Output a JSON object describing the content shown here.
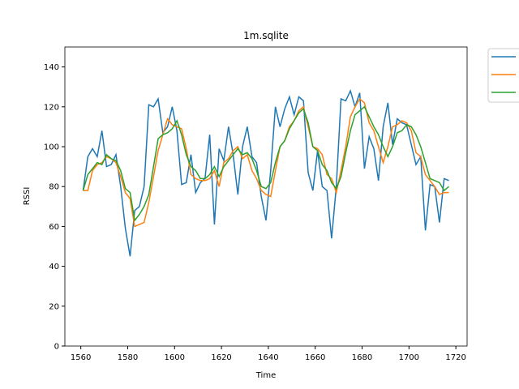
{
  "chart_data": {
    "type": "line",
    "title": "1m.sqlite",
    "x_label": "Time",
    "y_label": "RSSI",
    "x": [
      1561,
      1563,
      1565,
      1567,
      1569,
      1571,
      1573,
      1575,
      1577,
      1579,
      1581,
      1583,
      1585,
      1587,
      1589,
      1591,
      1593,
      1595,
      1597,
      1599,
      1601,
      1603,
      1605,
      1607,
      1609,
      1611,
      1613,
      1615,
      1617,
      1619,
      1621,
      1623,
      1625,
      1627,
      1629,
      1631,
      1633,
      1635,
      1637,
      1639,
      1641,
      1643,
      1645,
      1647,
      1649,
      1651,
      1653,
      1655,
      1657,
      1659,
      1661,
      1663,
      1665,
      1667,
      1669,
      1671,
      1673,
      1675,
      1677,
      1679,
      1681,
      1683,
      1685,
      1687,
      1689,
      1691,
      1693,
      1695,
      1697,
      1699,
      1701,
      1703,
      1705,
      1707,
      1709,
      1711,
      1713,
      1715,
      1717
    ],
    "series": [
      {
        "color": "#1f77b4",
        "values": [
          78,
          95,
          99,
          95,
          108,
          90,
          91,
          96,
          80,
          59,
          45,
          68,
          70,
          80,
          121,
          120,
          124,
          107,
          110,
          120,
          108,
          81,
          82,
          96,
          77,
          82,
          84,
          106,
          61,
          99,
          93,
          110,
          96,
          76,
          100,
          110,
          95,
          92,
          75,
          63,
          88,
          120,
          110,
          119,
          125,
          116,
          125,
          123,
          87,
          78,
          98,
          80,
          78,
          54,
          80,
          124,
          123,
          128,
          120,
          127,
          89,
          105,
          99,
          83,
          110,
          122,
          101,
          114,
          112,
          111,
          101,
          91,
          95,
          58,
          81,
          80,
          62,
          84,
          83
        ]
      },
      {
        "color": "#ff7f0e",
        "values": [
          78,
          78,
          88,
          91,
          92,
          95,
          94,
          92,
          85,
          77,
          74,
          60,
          61,
          62,
          72,
          85,
          98,
          106,
          114,
          111,
          110,
          109,
          99,
          86,
          84,
          83,
          83,
          84,
          88,
          80,
          92,
          94,
          98,
          100,
          94,
          96,
          88,
          84,
          78,
          76,
          75,
          88,
          100,
          103,
          110,
          113,
          118,
          120,
          110,
          100,
          99,
          96,
          86,
          84,
          77,
          88,
          100,
          115,
          120,
          124,
          122,
          112,
          108,
          100,
          92,
          100,
          110,
          111,
          113,
          112,
          108,
          97,
          95,
          86,
          83,
          80,
          76,
          77,
          77
        ]
      },
      {
        "color": "#2ca02c",
        "values": [
          78,
          86,
          89,
          92,
          91,
          96,
          94,
          93,
          88,
          79,
          77,
          63,
          66,
          70,
          76,
          90,
          104,
          106,
          107,
          109,
          113,
          106,
          96,
          90,
          88,
          84,
          84,
          86,
          90,
          85,
          90,
          93,
          96,
          99,
          96,
          97,
          94,
          88,
          80,
          79,
          82,
          92,
          100,
          103,
          109,
          113,
          117,
          119,
          112,
          100,
          98,
          91,
          88,
          82,
          79,
          85,
          97,
          108,
          116,
          118,
          120,
          115,
          110,
          106,
          100,
          95,
          100,
          107,
          108,
          111,
          110,
          106,
          100,
          92,
          84,
          83,
          82,
          78,
          80
        ]
      }
    ],
    "xlim": [
      1553.2,
      1724.8
    ],
    "ylim": [
      0,
      150
    ],
    "xticks": [
      1560,
      1580,
      1600,
      1620,
      1640,
      1660,
      1680,
      1700,
      1720
    ],
    "yticks": [
      0,
      20,
      40,
      60,
      80,
      100,
      120,
      140
    ],
    "legend": "outside-upper-right"
  }
}
